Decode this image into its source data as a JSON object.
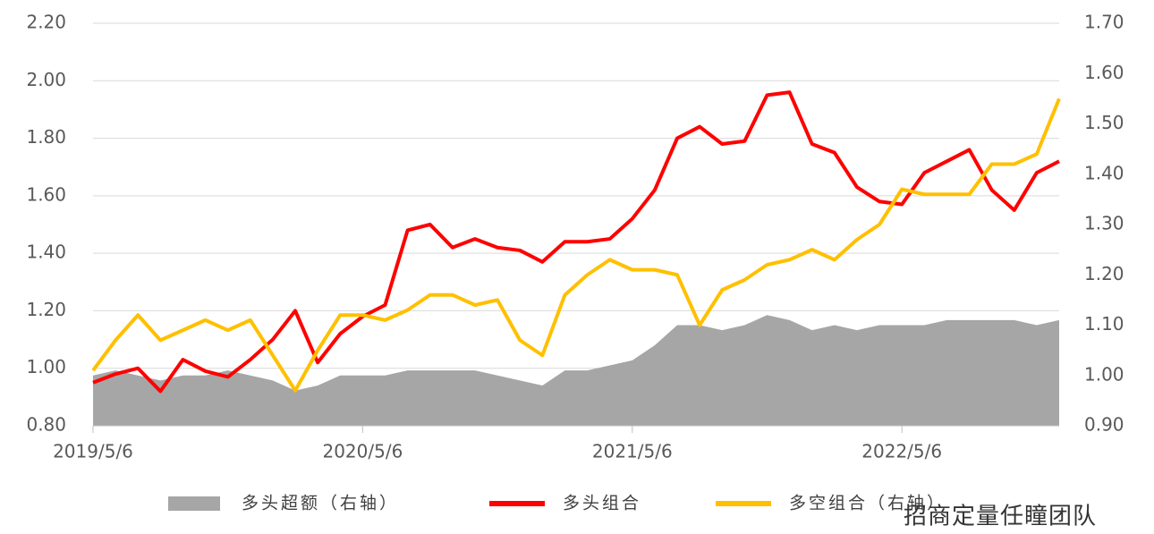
{
  "chart_data": {
    "type": "line",
    "x": [
      "2019/5/6",
      "2019/6/6",
      "2019/7/6",
      "2019/8/6",
      "2019/9/6",
      "2019/10/6",
      "2019/11/6",
      "2019/12/6",
      "2020/1/6",
      "2020/2/6",
      "2020/3/6",
      "2020/4/6",
      "2020/5/6",
      "2020/6/6",
      "2020/7/6",
      "2020/8/6",
      "2020/9/6",
      "2020/10/6",
      "2020/11/6",
      "2020/12/6",
      "2021/1/6",
      "2021/2/6",
      "2021/3/6",
      "2021/4/6",
      "2021/5/6",
      "2021/6/6",
      "2021/7/6",
      "2021/8/6",
      "2021/9/6",
      "2021/10/6",
      "2021/11/6",
      "2021/12/6",
      "2022/1/6",
      "2022/2/6",
      "2022/3/6",
      "2022/4/6",
      "2022/5/6",
      "2022/6/6",
      "2022/7/6",
      "2022/8/6",
      "2022/9/6",
      "2022/10/6",
      "2022/11/6",
      "2022/12/6"
    ],
    "xticks": [
      "2019/5/6",
      "2020/5/6",
      "2021/5/6",
      "2022/5/6"
    ],
    "series": [
      {
        "name": "多头超额（右轴）",
        "kind": "area",
        "axis": "y2",
        "color": "#a6a6a6",
        "values": [
          1.0,
          1.01,
          1.0,
          0.99,
          1.0,
          1.0,
          1.01,
          1.0,
          0.99,
          0.97,
          0.98,
          1.0,
          1.0,
          1.0,
          1.01,
          1.01,
          1.01,
          1.01,
          1.0,
          0.99,
          0.98,
          1.01,
          1.01,
          1.02,
          1.03,
          1.06,
          1.1,
          1.1,
          1.09,
          1.1,
          1.12,
          1.11,
          1.09,
          1.1,
          1.09,
          1.1,
          1.1,
          1.1,
          1.11,
          1.11,
          1.11,
          1.11,
          1.1,
          1.11
        ]
      },
      {
        "name": "多头组合",
        "kind": "line",
        "color": "#ff0000",
        "values": [
          0.95,
          0.98,
          1.0,
          0.92,
          1.03,
          0.99,
          0.97,
          1.03,
          1.1,
          1.2,
          1.02,
          1.12,
          1.18,
          1.22,
          1.48,
          1.5,
          1.42,
          1.45,
          1.42,
          1.41,
          1.37,
          1.44,
          1.44,
          1.45,
          1.52,
          1.62,
          1.8,
          1.84,
          1.78,
          1.79,
          1.95,
          1.96,
          1.78,
          1.75,
          1.63,
          1.58,
          1.57,
          1.68,
          1.72,
          1.76,
          1.62,
          1.55,
          1.68,
          1.72
        ]
      },
      {
        "name": "多空组合（右轴）",
        "kind": "line",
        "axis": "y2",
        "color": "#ffc000",
        "values": [
          1.01,
          1.07,
          1.12,
          1.07,
          1.09,
          1.11,
          1.09,
          1.11,
          1.04,
          0.97,
          1.05,
          1.12,
          1.12,
          1.11,
          1.13,
          1.16,
          1.16,
          1.14,
          1.15,
          1.07,
          1.04,
          1.16,
          1.2,
          1.23,
          1.21,
          1.21,
          1.2,
          1.1,
          1.17,
          1.19,
          1.22,
          1.23,
          1.25,
          1.23,
          1.27,
          1.3,
          1.37,
          1.36,
          1.36,
          1.36,
          1.42,
          1.42,
          1.44,
          1.55
        ]
      }
    ],
    "ylim": [
      0.8,
      2.2
    ],
    "yticks": [
      {
        "value": 0.8,
        "label": "0.80"
      },
      {
        "value": 1.0,
        "label": "1.00"
      },
      {
        "value": 1.2,
        "label": "1.20"
      },
      {
        "value": 1.4,
        "label": "1.40"
      },
      {
        "value": 1.6,
        "label": "1.60"
      },
      {
        "value": 1.8,
        "label": "1.80"
      },
      {
        "value": 2.0,
        "label": "2.00"
      },
      {
        "value": 2.2,
        "label": "2.20"
      }
    ],
    "y2lim": [
      0.9,
      1.7
    ],
    "y2ticks": [
      {
        "value": 0.9,
        "label": "0.90"
      },
      {
        "value": 1.0,
        "label": "1.00"
      },
      {
        "value": 1.1,
        "label": "1.10"
      },
      {
        "value": 1.2,
        "label": "1.20"
      },
      {
        "value": 1.3,
        "label": "1.30"
      },
      {
        "value": 1.4,
        "label": "1.40"
      },
      {
        "value": 1.5,
        "label": "1.50"
      },
      {
        "value": 1.6,
        "label": "1.60"
      },
      {
        "value": 1.7,
        "label": "1.70"
      }
    ],
    "grid": true,
    "legend": "bottom",
    "watermark": "招商定量任瞳团队"
  }
}
